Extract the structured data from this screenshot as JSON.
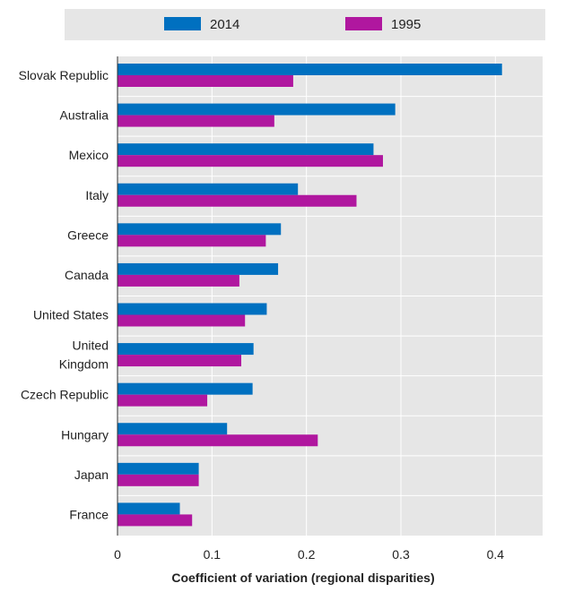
{
  "chart_data": {
    "type": "bar",
    "orientation": "horizontal",
    "categories": [
      "Slovak Republic",
      "Australia",
      "Mexico",
      "Italy",
      "Greece",
      "Canada",
      "United States",
      "United Kingdom",
      "Czech Republic",
      "Hungary",
      "Japan",
      "France"
    ],
    "category_labels": [
      [
        "Slovak Republic"
      ],
      [
        "Australia"
      ],
      [
        "Mexico"
      ],
      [
        "Italy"
      ],
      [
        "Greece"
      ],
      [
        "Canada"
      ],
      [
        "United States"
      ],
      [
        "United",
        "Kingdom"
      ],
      [
        "Czech Republic"
      ],
      [
        "Hungary"
      ],
      [
        "Japan"
      ],
      [
        "France"
      ]
    ],
    "series": [
      {
        "name": "2014",
        "color": "#0070c0",
        "values": [
          0.407,
          0.294,
          0.271,
          0.191,
          0.173,
          0.17,
          0.158,
          0.144,
          0.143,
          0.116,
          0.086,
          0.066
        ]
      },
      {
        "name": "1995",
        "color": "#b0179f",
        "values": [
          0.186,
          0.166,
          0.281,
          0.253,
          0.157,
          0.129,
          0.135,
          0.131,
          0.095,
          0.212,
          0.086,
          0.079
        ]
      }
    ],
    "xlabel": "Coefficient of variation (regional disparities)",
    "ylabel": "",
    "xlim": [
      0,
      0.45
    ],
    "xticks": [
      0,
      0.1,
      0.2,
      0.3,
      0.4
    ],
    "xtick_labels": [
      "0",
      "0.1",
      "0.2",
      "0.3",
      "0.4"
    ],
    "legend_position": "top",
    "grid": true,
    "plot_background": "#e6e6e6"
  }
}
